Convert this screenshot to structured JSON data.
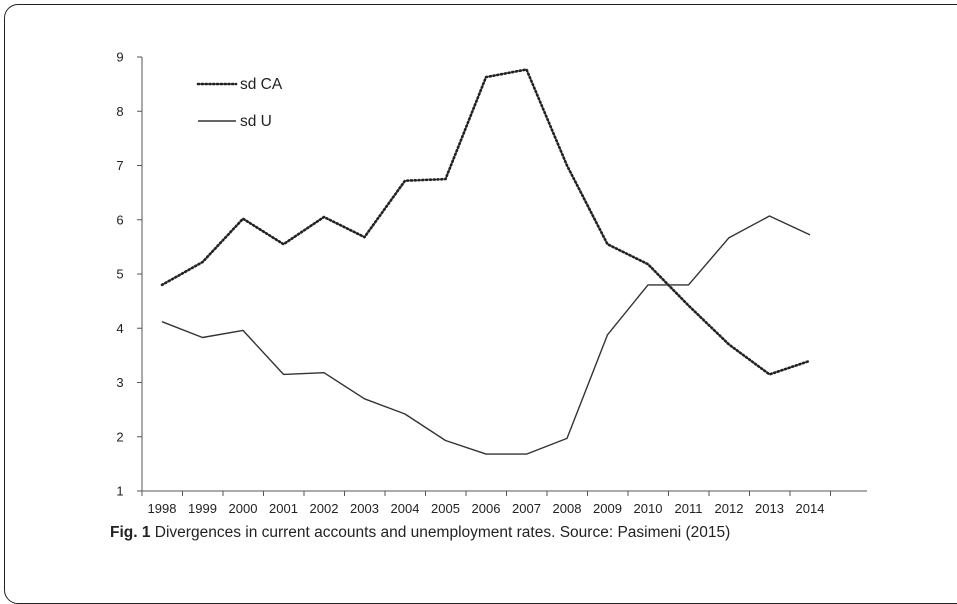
{
  "chart_data": {
    "type": "line",
    "x": [
      "1998",
      "1999",
      "2000",
      "2001",
      "2002",
      "2003",
      "2004",
      "2005",
      "2006",
      "2007",
      "2008",
      "2009",
      "2010",
      "2011",
      "2012",
      "2013",
      "2014"
    ],
    "series": [
      {
        "name": "sd CA",
        "style": "dotted",
        "color": "#222222",
        "values": [
          4.8,
          5.22,
          6.02,
          5.55,
          6.05,
          5.68,
          6.72,
          6.75,
          8.63,
          8.77,
          7.0,
          5.55,
          5.18,
          4.42,
          3.7,
          3.15,
          3.4
        ]
      },
      {
        "name": "sd U",
        "style": "solid",
        "color": "#333333",
        "values": [
          4.12,
          3.83,
          3.96,
          3.15,
          3.18,
          2.7,
          2.42,
          1.93,
          1.68,
          1.68,
          1.97,
          3.88,
          4.8,
          4.8,
          5.67,
          6.07,
          5.72
        ]
      }
    ],
    "yticks": [
      1,
      2,
      3,
      4,
      5,
      6,
      7,
      8,
      9
    ],
    "ylim": [
      1,
      9
    ],
    "grid": false,
    "legend": "top-left"
  },
  "caption": {
    "label": "Fig. 1",
    "text": " Divergences in current accounts and unemployment rates. Source: Pasimeni (2015)"
  }
}
